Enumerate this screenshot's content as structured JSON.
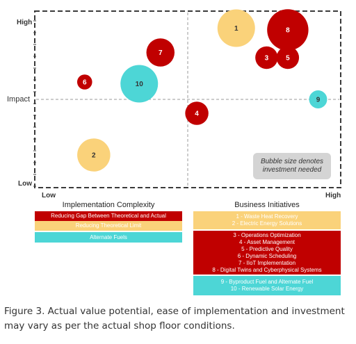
{
  "chart_data": {
    "type": "bubble",
    "y_axis": {
      "label": "Impact",
      "high_label": "High",
      "low_label": "Low"
    },
    "x_axis": {
      "low_label": "Low",
      "high_label": "High"
    },
    "xlim": [
      0,
      10
    ],
    "ylim": [
      0,
      10
    ],
    "points": [
      {
        "id": "1",
        "x": 6.6,
        "y": 9.1,
        "size": 1.0,
        "category": "reducing_limit"
      },
      {
        "id": "8",
        "x": 8.3,
        "y": 9.0,
        "size": 1.1,
        "category": "reducing_gap"
      },
      {
        "id": "3",
        "x": 7.6,
        "y": 7.4,
        "size": 0.6,
        "category": "reducing_gap"
      },
      {
        "id": "5",
        "x": 8.3,
        "y": 7.4,
        "size": 0.6,
        "category": "reducing_gap"
      },
      {
        "id": "7",
        "x": 4.1,
        "y": 7.7,
        "size": 0.75,
        "category": "reducing_gap"
      },
      {
        "id": "6",
        "x": 1.6,
        "y": 6.0,
        "size": 0.4,
        "category": "reducing_gap"
      },
      {
        "id": "10",
        "x": 3.4,
        "y": 5.9,
        "size": 1.0,
        "category": "alternate_fuels"
      },
      {
        "id": "4",
        "x": 5.3,
        "y": 4.2,
        "size": 0.62,
        "category": "reducing_gap"
      },
      {
        "id": "9",
        "x": 9.3,
        "y": 5.0,
        "size": 0.48,
        "category": "alternate_fuels"
      },
      {
        "id": "2",
        "x": 1.9,
        "y": 1.8,
        "size": 0.88,
        "category": "reducing_limit"
      }
    ],
    "note": [
      "Bubble size denotes",
      "investment needed"
    ],
    "grid": "dashed quadrant lines",
    "colors": {
      "reducing_gap": "#c00000",
      "reducing_limit": "#fad27a",
      "alternate_fuels": "#4dd6d6"
    }
  },
  "legend": {
    "implementation": {
      "title": "Implementation Complexity",
      "items": [
        {
          "label": "Reducing Gap Between Theoretical and Actual",
          "color": "#c00000",
          "text_color": "#ffffff"
        },
        {
          "label": "Reducing Theoretical Limit",
          "color": "#fad27a",
          "text_color": "#ffffff"
        },
        {
          "label": "Alternate Fuels",
          "color": "#4dd6d6",
          "text_color": "#ffffff"
        }
      ]
    },
    "initiatives": {
      "title": "Business Initiatives",
      "groups": [
        {
          "color": "#fad27a",
          "lines": [
            "1 - Waste Heat Recovery",
            "2 - Electric Energy Solutions"
          ]
        },
        {
          "color": "#c00000",
          "lines": [
            "3 - Operations Optimization",
            "4 - Asset Management",
            "5 - Predictive Quality",
            "6 - Dynamic Scheduling",
            "7 - IIoT Implementation",
            "8 - Digital Twins and Cyberphysical Systems"
          ]
        },
        {
          "color": "#4dd6d6",
          "lines": [
            "9 - Byproduct Fuel and Alternate Fuel",
            "10 - Renewable Solar Energy"
          ]
        }
      ]
    }
  },
  "caption": "Figure 3. Actual value potential, ease of implementation and investment may vary as per the actual shop floor conditions."
}
